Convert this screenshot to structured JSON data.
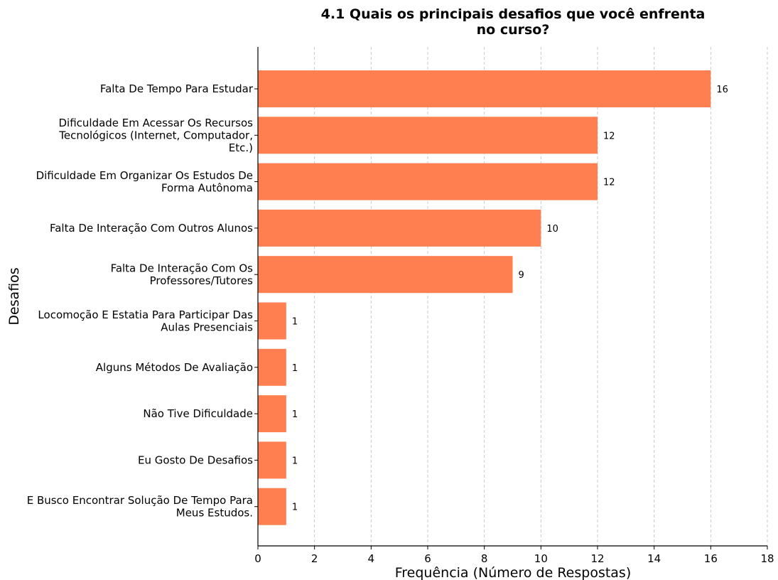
{
  "chart_data": {
    "type": "bar",
    "orientation": "horizontal",
    "title_lines": [
      "4.1 Quais os principais desafios que você enfrenta",
      "no curso?"
    ],
    "xlabel": "Frequência (Número de Respostas)",
    "ylabel": "Desafios",
    "xlim": [
      0,
      18
    ],
    "xticks": [
      0,
      2,
      4,
      6,
      8,
      10,
      12,
      14,
      16,
      18
    ],
    "grid": "vertical dashed",
    "bar_color": "#ff7f50",
    "categories": [
      [
        "Falta De Tempo Para Estudar"
      ],
      [
        "Dificuldade Em Acessar Os Recursos",
        "Tecnológicos (Internet, Computador,",
        "Etc.)"
      ],
      [
        "Dificuldade Em Organizar Os Estudos De",
        "Forma Autônoma"
      ],
      [
        "Falta De Interação Com Outros Alunos"
      ],
      [
        "Falta De Interação Com Os",
        "Professores/Tutores"
      ],
      [
        "Locomoção E Estatia Para Participar Das",
        "Aulas Presenciais"
      ],
      [
        "Alguns Métodos De Avaliação"
      ],
      [
        "Não Tive Dificuldade"
      ],
      [
        "Eu Gosto De Desafios"
      ],
      [
        "E Busco Encontrar Solução De Tempo Para",
        "Meus Estudos."
      ]
    ],
    "values": [
      16,
      12,
      12,
      10,
      9,
      1,
      1,
      1,
      1,
      1
    ]
  }
}
